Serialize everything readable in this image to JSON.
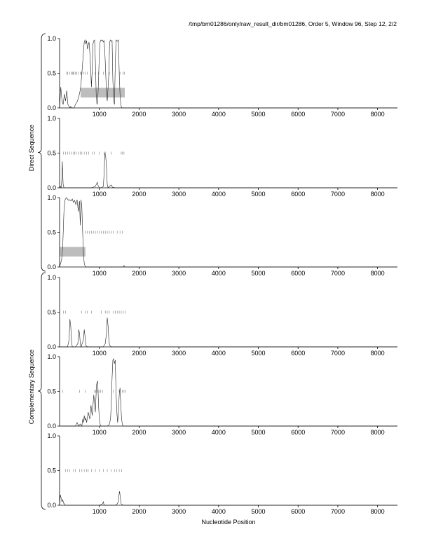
{
  "figure": {
    "header": "/tmp/bm01286/only/raw_result_dir/bm01286, Order 5, Window 96, Step 12, 2/2",
    "xlabel": "Nucleotide Position",
    "group_labels": [
      "Direct Sequence",
      "Complementary Sequence"
    ]
  },
  "chart_data": [
    {
      "type": "line",
      "group": "Direct Sequence",
      "frame": 1,
      "xlim": [
        0,
        8500
      ],
      "ylim": [
        0,
        1.0
      ],
      "x_ticks": [
        1000,
        2000,
        3000,
        4000,
        5000,
        6000,
        7000,
        8000
      ],
      "y_ticks": [
        "0.0",
        "0.5",
        "1.0"
      ],
      "series": [
        {
          "x": [
            0,
            30,
            60,
            90,
            120,
            150,
            180,
            210,
            240,
            260,
            280,
            300,
            330,
            360,
            400,
            450,
            500,
            530,
            560,
            600,
            620,
            640,
            660,
            680,
            700,
            720,
            740,
            760,
            780,
            800,
            820,
            840,
            860,
            880,
            900,
            920,
            940,
            960,
            980,
            1000,
            1020,
            1040,
            1060,
            1080,
            1100,
            1120,
            1140,
            1160,
            1180,
            1200,
            1220,
            1240,
            1260,
            1280,
            1300,
            1320,
            1340,
            1360,
            1380,
            1400,
            1420,
            1440,
            1460,
            1480,
            1500,
            1520,
            1540,
            1560,
            1600,
            1650,
            1700,
            1800,
            2000,
            8500
          ],
          "y": [
            0.0,
            0.3,
            0.1,
            0.05,
            0.2,
            0.1,
            0.25,
            0.05,
            0.02,
            0.0,
            0.02,
            0.0,
            0.0,
            0.0,
            0.05,
            0.1,
            0.2,
            0.3,
            0.5,
            0.8,
            0.95,
            0.98,
            0.92,
            0.97,
            0.85,
            0.9,
            0.95,
            0.8,
            0.6,
            0.3,
            0.55,
            0.92,
            0.97,
            0.98,
            0.7,
            0.2,
            0.05,
            0.1,
            0.4,
            0.8,
            0.95,
            0.98,
            0.97,
            0.98,
            0.95,
            0.97,
            0.8,
            0.5,
            0.2,
            0.1,
            0.3,
            0.5,
            0.95,
            0.98,
            0.96,
            0.97,
            0.4,
            0.1,
            0.05,
            0.6,
            0.98,
            0.97,
            0.96,
            0.98,
            0.5,
            0.2,
            0.05,
            0.0,
            0.0,
            0.0,
            0.0,
            0.0,
            0.0,
            0.0
          ]
        }
      ],
      "gene_ticks": [
        180,
        200,
        250,
        300,
        320,
        340,
        360,
        400,
        430,
        470,
        520,
        550,
        600,
        640,
        700,
        820,
        900,
        980,
        1100,
        1250,
        1520,
        1600,
        1630
      ],
      "gene_boxes": [
        {
          "start": 530,
          "end": 1640,
          "y_from": 0.15,
          "y_to": 0.29
        }
      ]
    },
    {
      "type": "line",
      "group": "Direct Sequence",
      "frame": 2,
      "xlim": [
        0,
        8500
      ],
      "ylim": [
        0,
        1.0
      ],
      "x_ticks": [
        1000,
        2000,
        3000,
        4000,
        5000,
        6000,
        7000,
        8000
      ],
      "y_ticks": [
        "0.0",
        "0.5",
        "1.0"
      ],
      "series": [
        {
          "x": [
            0,
            20,
            40,
            60,
            70,
            80,
            90,
            110,
            140,
            200,
            400,
            600,
            800,
            900,
            950,
            970,
            1000,
            1050,
            1100,
            1120,
            1140,
            1160,
            1180,
            1200,
            1220,
            1250,
            1300,
            1330,
            1400,
            8500
          ],
          "y": [
            0.0,
            0.02,
            0.0,
            0.15,
            0.38,
            0.2,
            0.05,
            0.0,
            0.0,
            0.0,
            0.0,
            0.0,
            0.0,
            0.02,
            0.08,
            0.03,
            0.0,
            0.0,
            0.02,
            0.2,
            0.5,
            0.45,
            0.3,
            0.05,
            0.0,
            0.02,
            0.04,
            0.01,
            0.0,
            0.0
          ]
        }
      ],
      "gene_ticks": [
        100,
        150,
        200,
        250,
        300,
        350,
        380,
        420,
        480,
        520,
        560,
        620,
        680,
        730,
        820,
        870,
        1000,
        1120,
        1150,
        1300,
        1550,
        1580,
        1620
      ],
      "gene_boxes": []
    },
    {
      "type": "line",
      "group": "Direct Sequence",
      "frame": 3,
      "xlim": [
        0,
        8500
      ],
      "ylim": [
        0,
        1.0
      ],
      "x_ticks": [
        1000,
        2000,
        3000,
        4000,
        5000,
        6000,
        7000,
        8000
      ],
      "y_ticks": [
        "0.0",
        "0.5",
        "1.0"
      ],
      "series": [
        {
          "x": [
            0,
            50,
            80,
            110,
            140,
            170,
            200,
            230,
            260,
            290,
            320,
            350,
            380,
            410,
            440,
            470,
            500,
            520,
            540,
            560,
            580,
            600,
            620,
            650,
            700,
            800,
            1000,
            1500,
            1600,
            1620,
            1650,
            8500
          ],
          "y": [
            0.0,
            0.1,
            0.3,
            0.8,
            0.97,
            1.0,
            0.98,
            0.96,
            0.97,
            0.95,
            0.98,
            0.93,
            0.96,
            0.9,
            0.97,
            0.8,
            0.95,
            0.6,
            0.97,
            0.85,
            0.5,
            0.2,
            0.05,
            0.0,
            0.0,
            0.0,
            0.0,
            0.0,
            0.0,
            0.02,
            0.0,
            0.0
          ]
        }
      ],
      "gene_ticks": [
        650,
        700,
        750,
        800,
        850,
        900,
        950,
        1000,
        1050,
        1100,
        1150,
        1200,
        1250,
        1300,
        1350,
        1450,
        1520,
        1580
      ],
      "gene_boxes": [
        {
          "start": 10,
          "end": 650,
          "y_from": 0.15,
          "y_to": 0.29
        }
      ]
    },
    {
      "type": "line",
      "group": "Complementary Sequence",
      "frame": 1,
      "xlim": [
        0,
        8500
      ],
      "ylim": [
        0,
        1.0
      ],
      "x_ticks": [
        1000,
        2000,
        3000,
        4000,
        5000,
        6000,
        7000,
        8000
      ],
      "y_ticks": [
        "0.0",
        "0.5",
        "1.0"
      ],
      "series": [
        {
          "x": [
            0,
            200,
            240,
            260,
            280,
            300,
            320,
            400,
            460,
            480,
            500,
            520,
            540,
            600,
            620,
            640,
            660,
            700,
            1100,
            1150,
            1180,
            1200,
            1220,
            1240,
            1260,
            1300,
            8500
          ],
          "y": [
            0.0,
            0.0,
            0.1,
            0.4,
            0.3,
            0.1,
            0.0,
            0.0,
            0.05,
            0.25,
            0.2,
            0.05,
            0.0,
            0.1,
            0.25,
            0.15,
            0.02,
            0.0,
            0.0,
            0.05,
            0.2,
            0.42,
            0.3,
            0.1,
            0.02,
            0.0,
            0.0
          ]
        }
      ],
      "gene_ticks": [
        100,
        150,
        550,
        650,
        700,
        800,
        1050,
        1150,
        1200,
        1250,
        1350,
        1400,
        1450,
        1500,
        1550,
        1600,
        1650
      ],
      "gene_boxes": []
    },
    {
      "type": "line",
      "group": "Complementary Sequence",
      "frame": 2,
      "xlim": [
        0,
        8500
      ],
      "ylim": [
        0,
        1.0
      ],
      "x_ticks": [
        1000,
        2000,
        3000,
        4000,
        5000,
        6000,
        7000,
        8000
      ],
      "y_ticks": [
        "0.0",
        "0.5",
        "1.0"
      ],
      "series": [
        {
          "x": [
            0,
            300,
            400,
            440,
            480,
            520,
            560,
            580,
            600,
            620,
            640,
            660,
            680,
            720,
            760,
            790,
            820,
            860,
            900,
            930,
            960,
            980,
            1000,
            1030,
            1100,
            1200,
            1250,
            1280,
            1300,
            1320,
            1340,
            1360,
            1380,
            1400,
            1420,
            1440,
            1460,
            1480,
            1500,
            1520,
            1540,
            1560,
            1580,
            1600,
            1640,
            8500
          ],
          "y": [
            0.0,
            0.0,
            0.0,
            0.05,
            0.0,
            0.03,
            0.0,
            0.1,
            0.05,
            0.15,
            0.08,
            0.12,
            0.05,
            0.2,
            0.1,
            0.3,
            0.15,
            0.45,
            0.2,
            0.6,
            0.65,
            0.3,
            0.1,
            0.0,
            0.0,
            0.0,
            0.02,
            0.1,
            0.3,
            0.7,
            0.95,
            0.97,
            0.9,
            0.95,
            0.5,
            0.2,
            0.05,
            0.2,
            0.45,
            0.55,
            0.3,
            0.1,
            0.02,
            0.0,
            0.0,
            0.0
          ]
        }
      ],
      "gene_ticks": [
        80,
        500,
        650,
        880,
        910,
        960,
        990,
        1030,
        1080,
        1350,
        1500,
        1580,
        1620,
        1660
      ],
      "gene_boxes": []
    },
    {
      "type": "line",
      "group": "Complementary Sequence",
      "frame": 3,
      "xlim": [
        0,
        8500
      ],
      "ylim": [
        0,
        1.0
      ],
      "x_ticks": [
        1000,
        2000,
        3000,
        4000,
        5000,
        6000,
        7000,
        8000
      ],
      "y_ticks": [
        "0.0",
        "0.5",
        "1.0"
      ],
      "series": [
        {
          "x": [
            0,
            20,
            40,
            60,
            80,
            100,
            120,
            140,
            200,
            1000,
            1080,
            1100,
            1120,
            1400,
            1450,
            1480,
            1500,
            1510,
            1530,
            1550,
            1600,
            8500
          ],
          "y": [
            0.0,
            0.15,
            0.1,
            0.05,
            0.08,
            0.03,
            0.02,
            0.0,
            0.0,
            0.0,
            0.02,
            0.05,
            0.0,
            0.0,
            0.02,
            0.05,
            0.18,
            0.2,
            0.1,
            0.02,
            0.0,
            0.0
          ]
        }
      ],
      "gene_ticks": [
        150,
        200,
        250,
        350,
        400,
        500,
        560,
        620,
        680,
        720,
        800,
        900,
        1000,
        1100,
        1200,
        1300,
        1380,
        1440,
        1500,
        1560
      ],
      "gene_boxes": []
    }
  ]
}
